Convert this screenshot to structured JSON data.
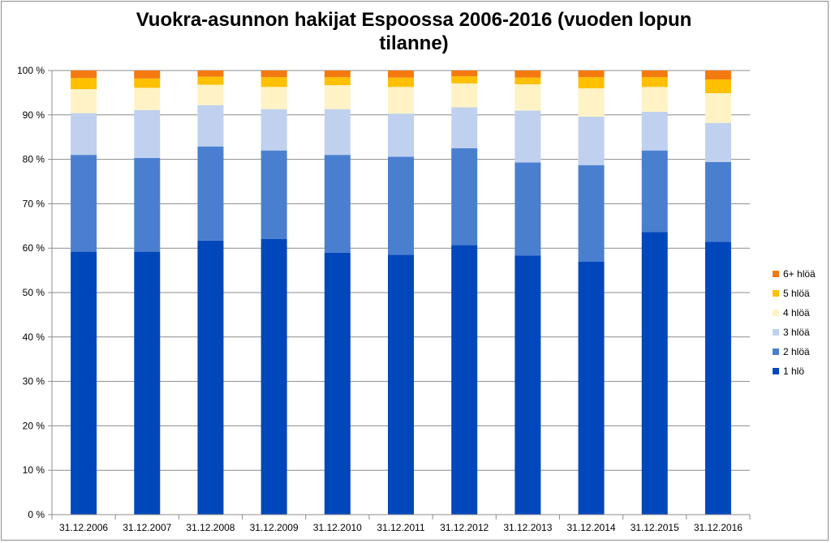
{
  "chart_data": {
    "type": "bar",
    "stacked": true,
    "title": "Vuokra-asunnon hakijat Espoossa 2006-2016 (vuoden lopun tilanne)",
    "title_lines": [
      "Vuokra-asunnon hakijat Espoossa 2006-2016 (vuoden lopun",
      "tilanne)"
    ],
    "xlabel": "",
    "ylabel": "",
    "ylim": [
      0,
      100
    ],
    "yticks": [
      "0 %",
      "10 %",
      "20 %",
      "30 %",
      "40 %",
      "50 %",
      "60 %",
      "70 %",
      "80 %",
      "90 %",
      "100 %"
    ],
    "grid": "horizontal",
    "legend_position": "right",
    "categories": [
      "31.12.2006",
      "31.12.2007",
      "31.12.2008",
      "31.12.2009",
      "31.12.2010",
      "31.12.2011",
      "31.12.2012",
      "31.12.2013",
      "31.12.2014",
      "31.12.2015",
      "31.12.2016"
    ],
    "series": [
      {
        "name": "1 hlö",
        "color": "#0047bb",
        "values": [
          59.2,
          59.2,
          61.7,
          62.1,
          59.0,
          58.5,
          60.7,
          58.3,
          57.0,
          63.6,
          61.4
        ]
      },
      {
        "name": "2 hlöä",
        "color": "#4a7fd0",
        "values": [
          21.8,
          21.1,
          21.2,
          19.9,
          22.0,
          22.1,
          21.8,
          21.0,
          21.7,
          18.4,
          18.0
        ]
      },
      {
        "name": "3 hlöä",
        "color": "#bfd1ee",
        "values": [
          9.4,
          10.8,
          9.3,
          9.3,
          10.3,
          9.7,
          9.2,
          11.7,
          10.9,
          8.7,
          8.8
        ]
      },
      {
        "name": "4 hlöä",
        "color": "#fff3c6",
        "values": [
          5.4,
          5.0,
          4.6,
          5.0,
          5.4,
          6.0,
          5.4,
          5.9,
          6.4,
          5.6,
          6.7
        ]
      },
      {
        "name": "5 hlöä",
        "color": "#ffc000",
        "values": [
          2.5,
          2.1,
          1.8,
          2.2,
          1.8,
          2.1,
          1.6,
          1.5,
          2.5,
          2.2,
          3.1
        ]
      },
      {
        "name": "6+  hlöä",
        "color": "#f47a10",
        "values": [
          1.7,
          1.8,
          1.4,
          1.5,
          1.5,
          1.6,
          1.3,
          1.6,
          1.5,
          1.5,
          2.0
        ]
      }
    ]
  }
}
